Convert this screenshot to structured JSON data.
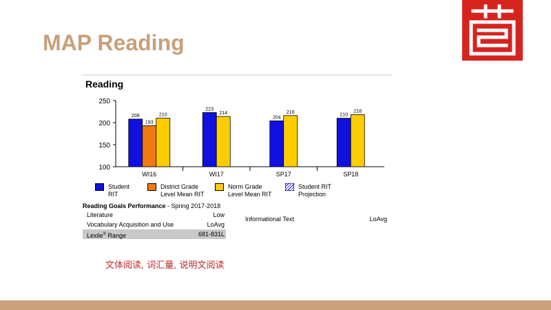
{
  "slide": {
    "title": "MAP Reading",
    "caption": "文体阅读, 词汇量, 说明文阅读"
  },
  "logo": {
    "icon": "seal-logo-icon",
    "color": "#d6231e"
  },
  "colors": {
    "student": "#1010e0",
    "district": "#f07a10",
    "norm": "#ffcc00",
    "footer": "#c9a27d"
  },
  "report": {
    "title": "Reading",
    "legend": [
      {
        "name": "Student RIT",
        "line1": "Student",
        "line2": "RIT",
        "color": "#1010e0",
        "style": "solid"
      },
      {
        "name": "District Grade Level Mean RIT",
        "line1": "District Grade",
        "line2": "Level Mean RIT",
        "color": "#f07a10",
        "style": "solid"
      },
      {
        "name": "Norm Grade Level Mean RIT",
        "line1": "Norm Grade",
        "line2": "Level Mean RIT",
        "color": "#ffcc00",
        "style": "solid"
      },
      {
        "name": "Student RIT Projection",
        "line1": "Student RIT",
        "line2": "Projection",
        "color": "#1010e0",
        "style": "dashed"
      }
    ],
    "goals_title": "Reading Goals Performance",
    "goals_term": " - Spring 2017-2018",
    "goals": [
      {
        "label": "Literature",
        "value": "Low"
      },
      {
        "label": "Vocabulary Acquisition and Use",
        "value": "LoAvg"
      }
    ],
    "lexile": {
      "label": "Lexile",
      "sup": "®",
      "label_after": " Range",
      "value": "681-831L"
    },
    "goal_right": {
      "label": "Informational Text",
      "value": "LoAvg"
    }
  },
  "chart_data": {
    "type": "bar",
    "title": "Reading",
    "categories": [
      "WI16",
      "WI17",
      "SP17",
      "SP18"
    ],
    "series": [
      {
        "name": "Student RIT",
        "color": "#1010e0",
        "values": [
          208,
          223,
          204,
          210
        ]
      },
      {
        "name": "District Grade Level Mean RIT",
        "color": "#f07a10",
        "values": [
          193,
          null,
          null,
          null
        ]
      },
      {
        "name": "Norm Grade Level Mean RIT",
        "color": "#ffcc00",
        "values": [
          210,
          214,
          216,
          218
        ]
      }
    ],
    "ylim": [
      100,
      250
    ],
    "yticks": [
      100,
      150,
      200,
      250
    ],
    "grid": false,
    "legend": "bottom"
  }
}
